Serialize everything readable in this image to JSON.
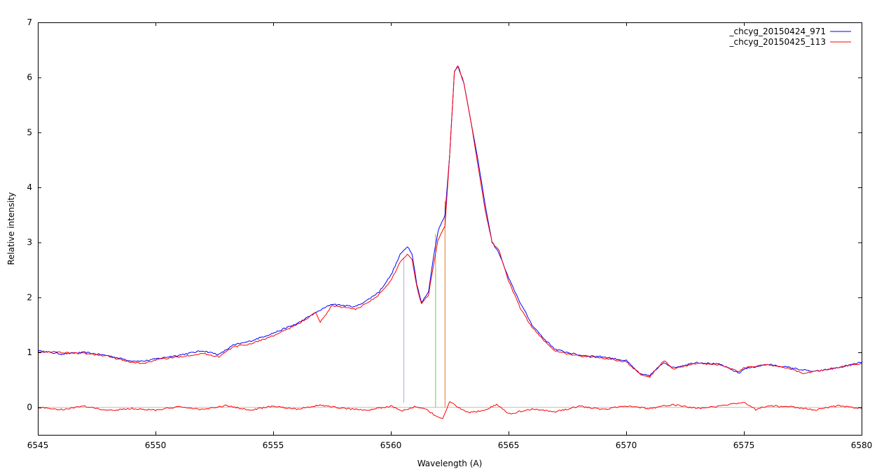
{
  "chart_data": {
    "type": "line",
    "title": "",
    "xlabel": "Wavelength (A)",
    "ylabel": "Relative intensity",
    "xlim": [
      6545,
      6580
    ],
    "ylim": [
      -0.5,
      7
    ],
    "xticks": [
      6545,
      6550,
      6555,
      6560,
      6565,
      6570,
      6575,
      6580
    ],
    "yticks": [
      0,
      1,
      2,
      3,
      4,
      5,
      6,
      7
    ],
    "grid": false,
    "legend_position": "top-right",
    "zero_line_color": "#c0c0c0",
    "series": [
      {
        "name": "_chcyg_20150424_971",
        "color": "#0000ff",
        "points": [
          [
            6545,
            1.03
          ],
          [
            6546,
            0.97
          ],
          [
            6547,
            1.0
          ],
          [
            6548,
            0.94
          ],
          [
            6548.9,
            0.85
          ],
          [
            6549.5,
            0.84
          ],
          [
            6550,
            0.88
          ],
          [
            6551,
            0.95
          ],
          [
            6552,
            1.03
          ],
          [
            6552.7,
            0.96
          ],
          [
            6553.3,
            1.13
          ],
          [
            6554,
            1.2
          ],
          [
            6555,
            1.35
          ],
          [
            6556,
            1.52
          ],
          [
            6556.8,
            1.72
          ],
          [
            6557.5,
            1.88
          ],
          [
            6558,
            1.85
          ],
          [
            6558.5,
            1.83
          ],
          [
            6559,
            1.95
          ],
          [
            6559.5,
            2.1
          ],
          [
            6560,
            2.4
          ],
          [
            6560.4,
            2.78
          ],
          [
            6560.7,
            2.93
          ],
          [
            6560.9,
            2.8
          ],
          [
            6561.1,
            2.25
          ],
          [
            6561.3,
            1.9
          ],
          [
            6561.6,
            2.1
          ],
          [
            6561.8,
            2.7
          ],
          [
            6562,
            3.2
          ],
          [
            6562.3,
            3.5
          ],
          [
            6562.5,
            4.6
          ],
          [
            6562.7,
            6.1
          ],
          [
            6562.85,
            6.2
          ],
          [
            6563.1,
            5.9
          ],
          [
            6563.4,
            5.2
          ],
          [
            6563.7,
            4.5
          ],
          [
            6564,
            3.7
          ],
          [
            6564.3,
            3.0
          ],
          [
            6564.6,
            2.8
          ],
          [
            6565,
            2.35
          ],
          [
            6565.5,
            1.9
          ],
          [
            6566,
            1.5
          ],
          [
            6566.5,
            1.25
          ],
          [
            6567,
            1.05
          ],
          [
            6568,
            0.95
          ],
          [
            6569,
            0.92
          ],
          [
            6570,
            0.85
          ],
          [
            6570.6,
            0.6
          ],
          [
            6571,
            0.58
          ],
          [
            6571.6,
            0.82
          ],
          [
            6572,
            0.72
          ],
          [
            6573,
            0.82
          ],
          [
            6574,
            0.78
          ],
          [
            6574.8,
            0.62
          ],
          [
            6575,
            0.7
          ],
          [
            6576,
            0.78
          ],
          [
            6577,
            0.72
          ],
          [
            6577.5,
            0.68
          ],
          [
            6578,
            0.65
          ],
          [
            6579,
            0.72
          ],
          [
            6580,
            0.82
          ]
        ]
      },
      {
        "name": "_chcyg_20150425_113",
        "color": "#ff0000",
        "points": [
          [
            6545,
            1.02
          ],
          [
            6546,
            1.0
          ],
          [
            6547,
            0.98
          ],
          [
            6548,
            0.93
          ],
          [
            6548.9,
            0.82
          ],
          [
            6549.5,
            0.8
          ],
          [
            6550,
            0.86
          ],
          [
            6551,
            0.92
          ],
          [
            6552,
            0.98
          ],
          [
            6552.7,
            0.92
          ],
          [
            6553.3,
            1.1
          ],
          [
            6554,
            1.15
          ],
          [
            6555,
            1.3
          ],
          [
            6556,
            1.5
          ],
          [
            6556.8,
            1.72
          ],
          [
            6557,
            1.55
          ],
          [
            6557.5,
            1.85
          ],
          [
            6558,
            1.82
          ],
          [
            6558.5,
            1.78
          ],
          [
            6559,
            1.9
          ],
          [
            6559.5,
            2.05
          ],
          [
            6560,
            2.3
          ],
          [
            6560.4,
            2.65
          ],
          [
            6560.7,
            2.78
          ],
          [
            6560.9,
            2.7
          ],
          [
            6561.1,
            2.2
          ],
          [
            6561.3,
            1.88
          ],
          [
            6561.6,
            2.05
          ],
          [
            6561.8,
            2.55
          ],
          [
            6562,
            3.05
          ],
          [
            6562.3,
            3.3
          ],
          [
            6562.5,
            4.6
          ],
          [
            6562.7,
            6.1
          ],
          [
            6562.85,
            6.22
          ],
          [
            6563.1,
            5.9
          ],
          [
            6563.4,
            5.2
          ],
          [
            6563.7,
            4.4
          ],
          [
            6564,
            3.6
          ],
          [
            6564.3,
            3.0
          ],
          [
            6564.6,
            2.85
          ],
          [
            6565,
            2.3
          ],
          [
            6565.5,
            1.8
          ],
          [
            6566,
            1.45
          ],
          [
            6566.5,
            1.22
          ],
          [
            6567,
            1.02
          ],
          [
            6568,
            0.93
          ],
          [
            6569,
            0.9
          ],
          [
            6570,
            0.83
          ],
          [
            6570.6,
            0.6
          ],
          [
            6571,
            0.55
          ],
          [
            6571.6,
            0.85
          ],
          [
            6572,
            0.7
          ],
          [
            6573,
            0.8
          ],
          [
            6574,
            0.77
          ],
          [
            6574.8,
            0.65
          ],
          [
            6575,
            0.72
          ],
          [
            6576,
            0.78
          ],
          [
            6577,
            0.7
          ],
          [
            6577.5,
            0.62
          ],
          [
            6578,
            0.65
          ],
          [
            6579,
            0.73
          ],
          [
            6580,
            0.8
          ]
        ]
      },
      {
        "name": "",
        "color": "#ff0000",
        "points": [
          [
            6545,
            0.0
          ],
          [
            6546,
            -0.04
          ],
          [
            6547,
            0.02
          ],
          [
            6548,
            -0.06
          ],
          [
            6549,
            -0.02
          ],
          [
            6550,
            -0.05
          ],
          [
            6551,
            0.01
          ],
          [
            6552,
            -0.04
          ],
          [
            6553,
            0.03
          ],
          [
            6554,
            -0.05
          ],
          [
            6555,
            0.02
          ],
          [
            6556,
            -0.03
          ],
          [
            6557,
            0.04
          ],
          [
            6558,
            -0.02
          ],
          [
            6559,
            -0.05
          ],
          [
            6560,
            0.02
          ],
          [
            6560.5,
            -0.06
          ],
          [
            6561,
            0.01
          ],
          [
            6561.5,
            -0.04
          ],
          [
            6562,
            -0.18
          ],
          [
            6562.2,
            -0.2
          ],
          [
            6562.5,
            0.1
          ],
          [
            6562.8,
            0.02
          ],
          [
            6563.3,
            -0.1
          ],
          [
            6564,
            -0.05
          ],
          [
            6564.5,
            0.05
          ],
          [
            6565,
            -0.12
          ],
          [
            6566,
            -0.03
          ],
          [
            6567,
            -0.08
          ],
          [
            6568,
            0.02
          ],
          [
            6569,
            -0.04
          ],
          [
            6570,
            0.03
          ],
          [
            6571,
            -0.02
          ],
          [
            6572,
            0.05
          ],
          [
            6573,
            -0.02
          ],
          [
            6574,
            0.02
          ],
          [
            6575,
            0.1
          ],
          [
            6575.5,
            -0.04
          ],
          [
            6576,
            0.03
          ],
          [
            6577,
            0.01
          ],
          [
            6578,
            -0.05
          ],
          [
            6579,
            0.03
          ],
          [
            6580,
            -0.02
          ]
        ]
      }
    ],
    "markers": [
      {
        "x": 6560.55,
        "y": [
          0.08,
          2.72
        ],
        "color": "#c8a0e0"
      },
      {
        "x": 6561.9,
        "y": [
          0.0,
          3.15
        ],
        "color": "#80c040"
      },
      {
        "x": 6562.3,
        "y": [
          0.0,
          3.75
        ],
        "color": "#e07820"
      }
    ]
  }
}
